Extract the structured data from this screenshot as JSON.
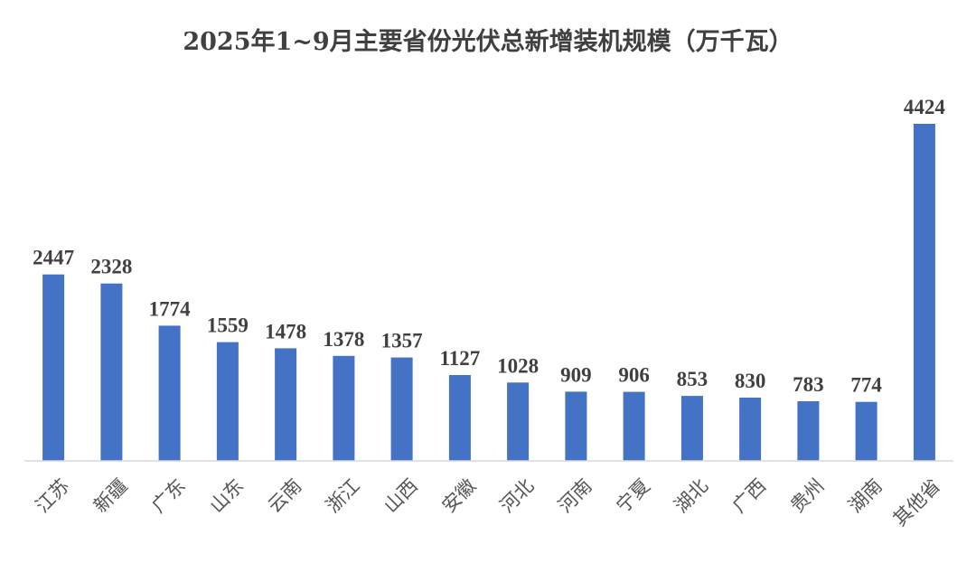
{
  "chart_data": {
    "type": "bar",
    "title": "2025年1~9月主要省份光伏总新增装机规模（万千瓦）",
    "xlabel": "",
    "ylabel": "",
    "categories": [
      "江苏",
      "新疆",
      "广东",
      "山东",
      "云南",
      "浙江",
      "山西",
      "安徽",
      "河北",
      "河南",
      "宁夏",
      "湖北",
      "广西",
      "贵州",
      "湖南",
      "其他省"
    ],
    "values": [
      2447,
      2328,
      1774,
      1559,
      1478,
      1378,
      1357,
      1127,
      1028,
      909,
      906,
      853,
      830,
      783,
      774,
      4424
    ],
    "ylim": [
      0,
      4424
    ],
    "grid": false,
    "legend": "none",
    "bar_color": "#4472C4"
  }
}
